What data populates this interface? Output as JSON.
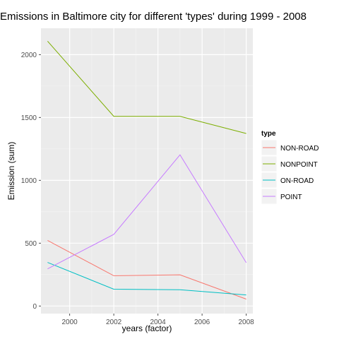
{
  "chart_data": {
    "type": "line",
    "title": "Emissions in Baltimore city for different 'types' during 1999 - 2008",
    "xlabel": "years (factor)",
    "ylabel": "Emission (sum)",
    "x": [
      1999,
      2002,
      2005,
      2008
    ],
    "xlim": [
      1998.7,
      2008.3
    ],
    "ylim": [
      -60,
      2210
    ],
    "x_ticks": [
      2000,
      2002,
      2004,
      2006,
      2008
    ],
    "y_ticks": [
      0,
      500,
      1000,
      1500,
      2000
    ],
    "grid": true,
    "legend": {
      "title": "type",
      "placement": "right"
    },
    "series": [
      {
        "name": "NON-ROAD",
        "color": "#F8766D",
        "values": [
          522,
          241,
          248,
          55
        ]
      },
      {
        "name": "NONPOINT",
        "color": "#7CAE00",
        "values": [
          2107,
          1509,
          1509,
          1373
        ]
      },
      {
        "name": "ON-ROAD",
        "color": "#00BFC4",
        "values": [
          347,
          134,
          130,
          88
        ]
      },
      {
        "name": "POINT",
        "color": "#C77CFF",
        "values": [
          296,
          570,
          1203,
          345
        ]
      }
    ]
  }
}
